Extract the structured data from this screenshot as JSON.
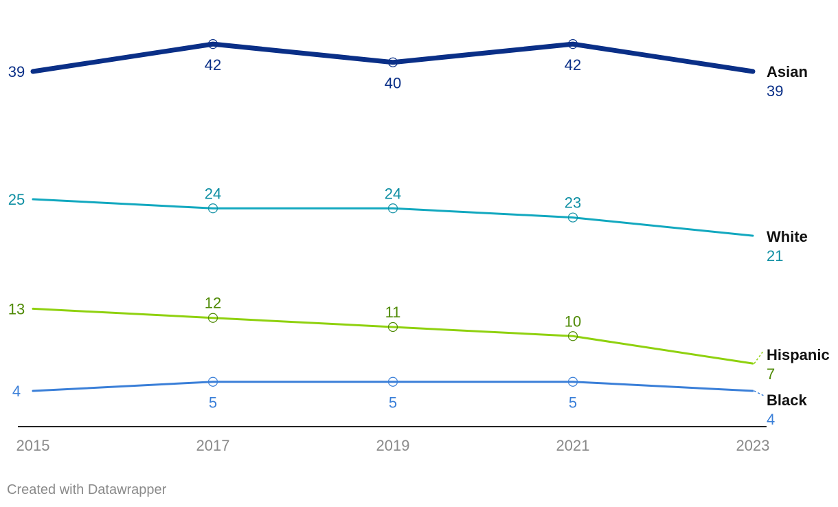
{
  "chart_data": {
    "type": "line",
    "x": [
      "2015",
      "2017",
      "2019",
      "2021",
      "2023"
    ],
    "ylim": [
      0,
      45
    ],
    "grid": false,
    "legend": "direct-labels-right",
    "series": [
      {
        "name": "Asian",
        "values": [
          39,
          42,
          40,
          42,
          39
        ],
        "color": "#0a2f87",
        "value_color": "#0a2f87",
        "width": "thick",
        "dashed_connector": false
      },
      {
        "name": "White",
        "values": [
          25,
          24,
          24,
          23,
          21
        ],
        "color": "#12a8bf",
        "value_color": "#0f8fa3",
        "width": "normal",
        "dashed_connector": false
      },
      {
        "name": "Hispanic",
        "values": [
          13,
          12,
          11,
          10,
          7
        ],
        "color": "#8fd10f",
        "value_color": "#4f8a06",
        "width": "normal",
        "dashed_connector": true
      },
      {
        "name": "Black",
        "values": [
          4,
          5,
          5,
          5,
          4
        ],
        "color": "#3a7fd8",
        "value_color": "#3a7fd8",
        "width": "normal",
        "dashed_connector": true
      }
    ]
  },
  "footer": {
    "credit": "Created with Datawrapper"
  }
}
